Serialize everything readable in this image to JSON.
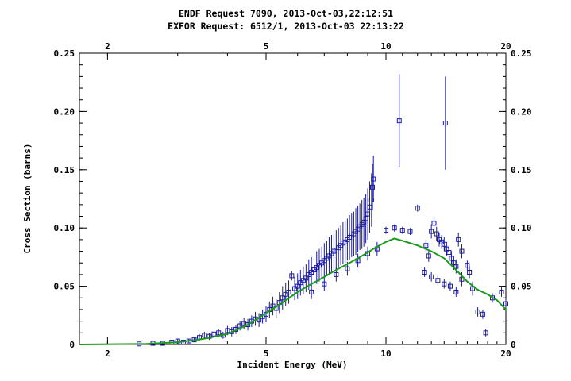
{
  "header": {
    "endf_request": "ENDF Request 7090, 2013-Oct-03,22:12:51",
    "exfor_request": "EXFOR Request: 6512/1, 2013-Oct-03 22:13:22"
  },
  "colors": {
    "evaluation_line": "#1a9a1a",
    "data_points": "#1a1aa0",
    "axes": "#000000"
  },
  "chart_data": {
    "type": "scatter",
    "xlabel": "Incident Energy (MeV)",
    "ylabel": "Cross Section (barns)",
    "x_scale": "log",
    "xlim": [
      1.7,
      20
    ],
    "ylim": [
      0,
      0.25
    ],
    "x_ticks": [
      2,
      5,
      10,
      20
    ],
    "x_tick_labels": [
      "2",
      "5",
      "10",
      "20"
    ],
    "y_ticks": [
      0,
      0.05,
      0.1,
      0.15,
      0.2,
      0.25
    ],
    "y_tick_labels": [
      "0",
      "0.05",
      "0.10",
      "0.15",
      "0.20",
      "0.25"
    ],
    "grid": false,
    "series": [
      {
        "kind": "line",
        "color": "#1a9a1a",
        "x": [
          1.7,
          2.5,
          3.0,
          3.5,
          4.0,
          4.5,
          5.0,
          5.5,
          6.0,
          6.5,
          7.0,
          7.5,
          8.0,
          8.5,
          9.0,
          9.5,
          10.0,
          10.5,
          11.0,
          12.0,
          13.0,
          14.0,
          15.0,
          16.0,
          17.0,
          18.0,
          19.0,
          20.0
        ],
        "y": [
          0.0,
          0.0005,
          0.002,
          0.005,
          0.009,
          0.017,
          0.027,
          0.036,
          0.045,
          0.052,
          0.058,
          0.064,
          0.069,
          0.074,
          0.079,
          0.084,
          0.088,
          0.091,
          0.089,
          0.085,
          0.08,
          0.074,
          0.064,
          0.054,
          0.047,
          0.043,
          0.038,
          0.03
        ]
      },
      {
        "kind": "points",
        "color": "#1a1aa0",
        "points": [
          [
            2.4,
            0.0005,
            0.0005
          ],
          [
            2.6,
            0.001,
            0.0005
          ],
          [
            2.75,
            0.001,
            0.001
          ],
          [
            2.9,
            0.002,
            0.001
          ],
          [
            3.0,
            0.003,
            0.002
          ],
          [
            3.1,
            0.002,
            0.001
          ],
          [
            3.2,
            0.003,
            0.002
          ],
          [
            3.3,
            0.004,
            0.002
          ],
          [
            3.4,
            0.006,
            0.003
          ],
          [
            3.5,
            0.008,
            0.003
          ],
          [
            3.6,
            0.007,
            0.003
          ],
          [
            3.7,
            0.009,
            0.003
          ],
          [
            3.8,
            0.01,
            0.003
          ],
          [
            3.9,
            0.008,
            0.003
          ],
          [
            4.0,
            0.012,
            0.004
          ],
          [
            4.1,
            0.011,
            0.004
          ],
          [
            4.2,
            0.013,
            0.004
          ],
          [
            4.3,
            0.016,
            0.004
          ],
          [
            4.4,
            0.018,
            0.005
          ],
          [
            4.5,
            0.017,
            0.005
          ],
          [
            4.6,
            0.02,
            0.005
          ],
          [
            4.7,
            0.022,
            0.006
          ],
          [
            4.8,
            0.021,
            0.006
          ],
          [
            4.9,
            0.024,
            0.006
          ],
          [
            5.0,
            0.026,
            0.007
          ],
          [
            5.1,
            0.03,
            0.007
          ],
          [
            5.2,
            0.033,
            0.008
          ],
          [
            5.3,
            0.031,
            0.008
          ],
          [
            5.4,
            0.036,
            0.009
          ],
          [
            5.5,
            0.04,
            0.01
          ],
          [
            5.6,
            0.043,
            0.01
          ],
          [
            5.7,
            0.045,
            0.01
          ],
          [
            5.8,
            0.059,
            0.004
          ],
          [
            5.9,
            0.048,
            0.01
          ],
          [
            6.0,
            0.05,
            0.011
          ],
          [
            6.1,
            0.053,
            0.011
          ],
          [
            6.2,
            0.055,
            0.012
          ],
          [
            6.3,
            0.057,
            0.012
          ],
          [
            6.4,
            0.06,
            0.013
          ],
          [
            6.5,
            0.062,
            0.013
          ],
          [
            6.6,
            0.064,
            0.013
          ],
          [
            6.7,
            0.066,
            0.014
          ],
          [
            6.8,
            0.068,
            0.014
          ],
          [
            6.9,
            0.07,
            0.014
          ],
          [
            7.0,
            0.072,
            0.015
          ],
          [
            7.1,
            0.074,
            0.015
          ],
          [
            7.2,
            0.076,
            0.016
          ],
          [
            7.3,
            0.078,
            0.016
          ],
          [
            7.4,
            0.08,
            0.016
          ],
          [
            7.5,
            0.081,
            0.017
          ],
          [
            7.6,
            0.083,
            0.017
          ],
          [
            7.7,
            0.085,
            0.017
          ],
          [
            7.8,
            0.087,
            0.018
          ],
          [
            7.9,
            0.088,
            0.018
          ],
          [
            8.0,
            0.09,
            0.018
          ],
          [
            8.1,
            0.092,
            0.019
          ],
          [
            8.2,
            0.094,
            0.019
          ],
          [
            8.3,
            0.095,
            0.019
          ],
          [
            8.4,
            0.097,
            0.02
          ],
          [
            8.5,
            0.099,
            0.02
          ],
          [
            8.6,
            0.101,
            0.02
          ],
          [
            8.7,
            0.103,
            0.021
          ],
          [
            8.8,
            0.105,
            0.021
          ],
          [
            8.9,
            0.108,
            0.021
          ],
          [
            9.0,
            0.112,
            0.022
          ],
          [
            9.1,
            0.118,
            0.022
          ],
          [
            9.2,
            0.124,
            0.023
          ],
          [
            9.25,
            0.135,
            0.02
          ],
          [
            9.3,
            0.142,
            0.02
          ],
          [
            6.5,
            0.045,
            0.006
          ],
          [
            7.0,
            0.052,
            0.006
          ],
          [
            7.5,
            0.06,
            0.006
          ],
          [
            8.0,
            0.065,
            0.006
          ],
          [
            8.5,
            0.072,
            0.006
          ],
          [
            9.0,
            0.078,
            0.006
          ],
          [
            9.5,
            0.082,
            0.006
          ],
          [
            10.0,
            0.098,
            0.003
          ],
          [
            10.5,
            0.1,
            0.003
          ],
          [
            11.0,
            0.098,
            0.003
          ],
          [
            11.5,
            0.097,
            0.003
          ],
          [
            12.0,
            0.117,
            0.003
          ],
          [
            10.8,
            0.192,
            0.04
          ],
          [
            12.6,
            0.085,
            0.005
          ],
          [
            12.8,
            0.076,
            0.005
          ],
          [
            13.0,
            0.097,
            0.006
          ],
          [
            13.2,
            0.104,
            0.006
          ],
          [
            13.4,
            0.095,
            0.006
          ],
          [
            13.6,
            0.09,
            0.006
          ],
          [
            13.8,
            0.088,
            0.006
          ],
          [
            14.0,
            0.086,
            0.006
          ],
          [
            14.1,
            0.19,
            0.04
          ],
          [
            14.2,
            0.082,
            0.006
          ],
          [
            14.4,
            0.079,
            0.006
          ],
          [
            14.6,
            0.074,
            0.006
          ],
          [
            14.8,
            0.07,
            0.006
          ],
          [
            15.0,
            0.067,
            0.006
          ],
          [
            12.5,
            0.062,
            0.004
          ],
          [
            13.0,
            0.058,
            0.004
          ],
          [
            13.5,
            0.055,
            0.004
          ],
          [
            14.0,
            0.052,
            0.004
          ],
          [
            14.5,
            0.05,
            0.004
          ],
          [
            15.0,
            0.045,
            0.004
          ],
          [
            15.5,
            0.056,
            0.006
          ],
          [
            16.0,
            0.068,
            0.004
          ],
          [
            16.5,
            0.048,
            0.006
          ],
          [
            17.0,
            0.028,
            0.004
          ],
          [
            17.5,
            0.026,
            0.004
          ],
          [
            17.8,
            0.01,
            0.003
          ],
          [
            18.5,
            0.04,
            0.004
          ],
          [
            19.5,
            0.045,
            0.004
          ],
          [
            20.0,
            0.035,
            0.004
          ],
          [
            15.5,
            0.08,
            0.006
          ],
          [
            15.2,
            0.09,
            0.006
          ],
          [
            16.2,
            0.062,
            0.005
          ]
        ]
      }
    ]
  }
}
